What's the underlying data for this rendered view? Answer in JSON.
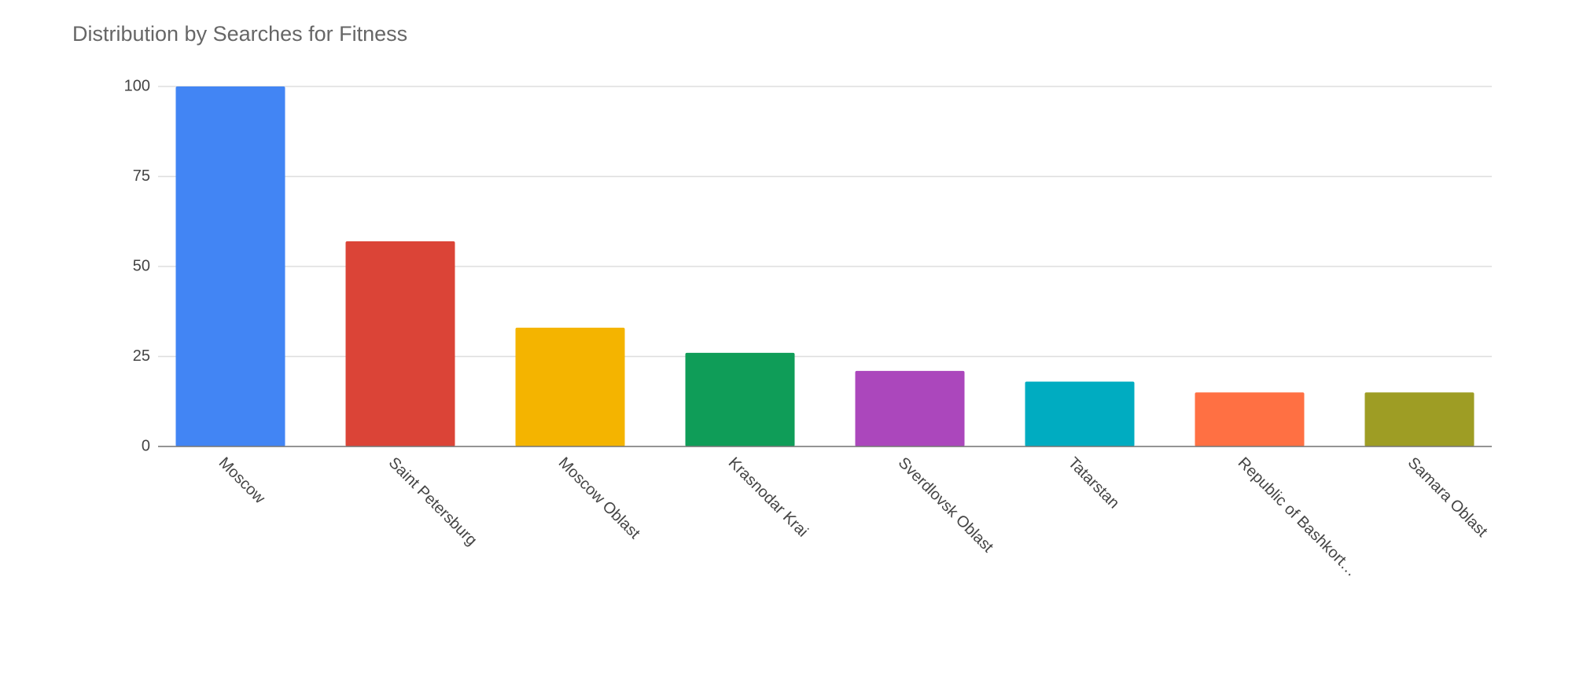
{
  "chart_data": {
    "type": "bar",
    "title": "Distribution by Searches for Fitness",
    "categories": [
      "Moscow",
      "Saint Petersburg",
      "Moscow Oblast",
      "Krasnodar Krai",
      "Sverdlovsk Oblast",
      "Tatarstan",
      "Republic of Bashkort…",
      "Samara Oblast"
    ],
    "values": [
      100,
      57,
      33,
      26,
      21,
      18,
      15,
      15
    ],
    "colors": [
      "#4285f4",
      "#db4437",
      "#f4b400",
      "#0f9d58",
      "#ab47bc",
      "#00acc1",
      "#ff7043",
      "#9e9d24"
    ],
    "ylim": [
      0,
      100
    ],
    "yticks": [
      0,
      25,
      50,
      75,
      100
    ],
    "grid": true
  }
}
